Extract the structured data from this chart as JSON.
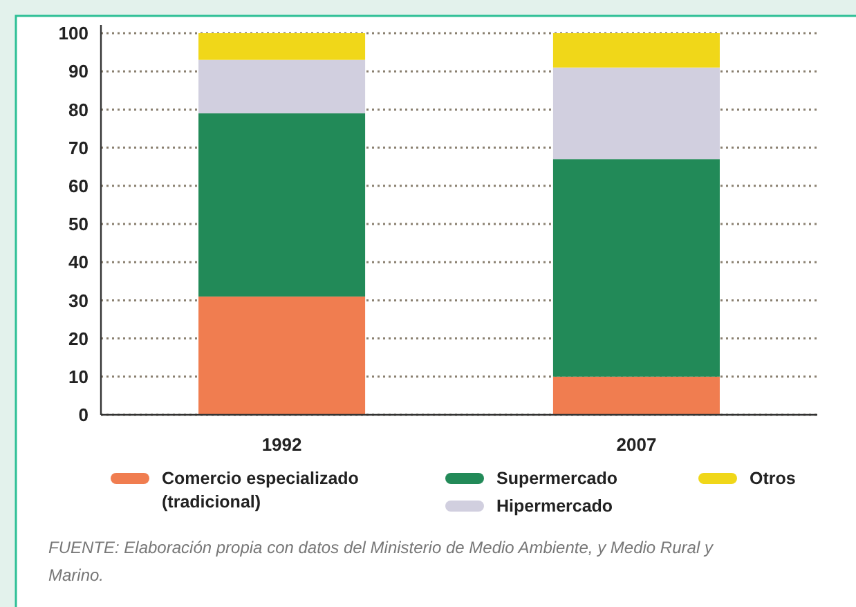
{
  "chart_data": {
    "type": "bar",
    "stacked": true,
    "categories": [
      "1992",
      "2007"
    ],
    "series": [
      {
        "name": "Comercio especializado (tradicional)",
        "color": "#f07d50",
        "values": [
          31,
          10
        ]
      },
      {
        "name": "Supermercado",
        "color": "#228a58",
        "values": [
          48,
          57
        ]
      },
      {
        "name": "Hipermercado",
        "color": "#d1cfdf",
        "values": [
          14,
          24
        ]
      },
      {
        "name": "Otros",
        "color": "#f0d719",
        "values": [
          7,
          9
        ]
      }
    ],
    "ylim": [
      0,
      100
    ],
    "yticks": [
      0,
      10,
      20,
      30,
      40,
      50,
      60,
      70,
      80,
      90,
      100
    ],
    "grid": "y",
    "legend": "bottom",
    "annotations": [
      "FUENTE: Elaboración propia con datos del Ministerio de Medio Ambiente, y Medio Rural y Marino."
    ]
  }
}
